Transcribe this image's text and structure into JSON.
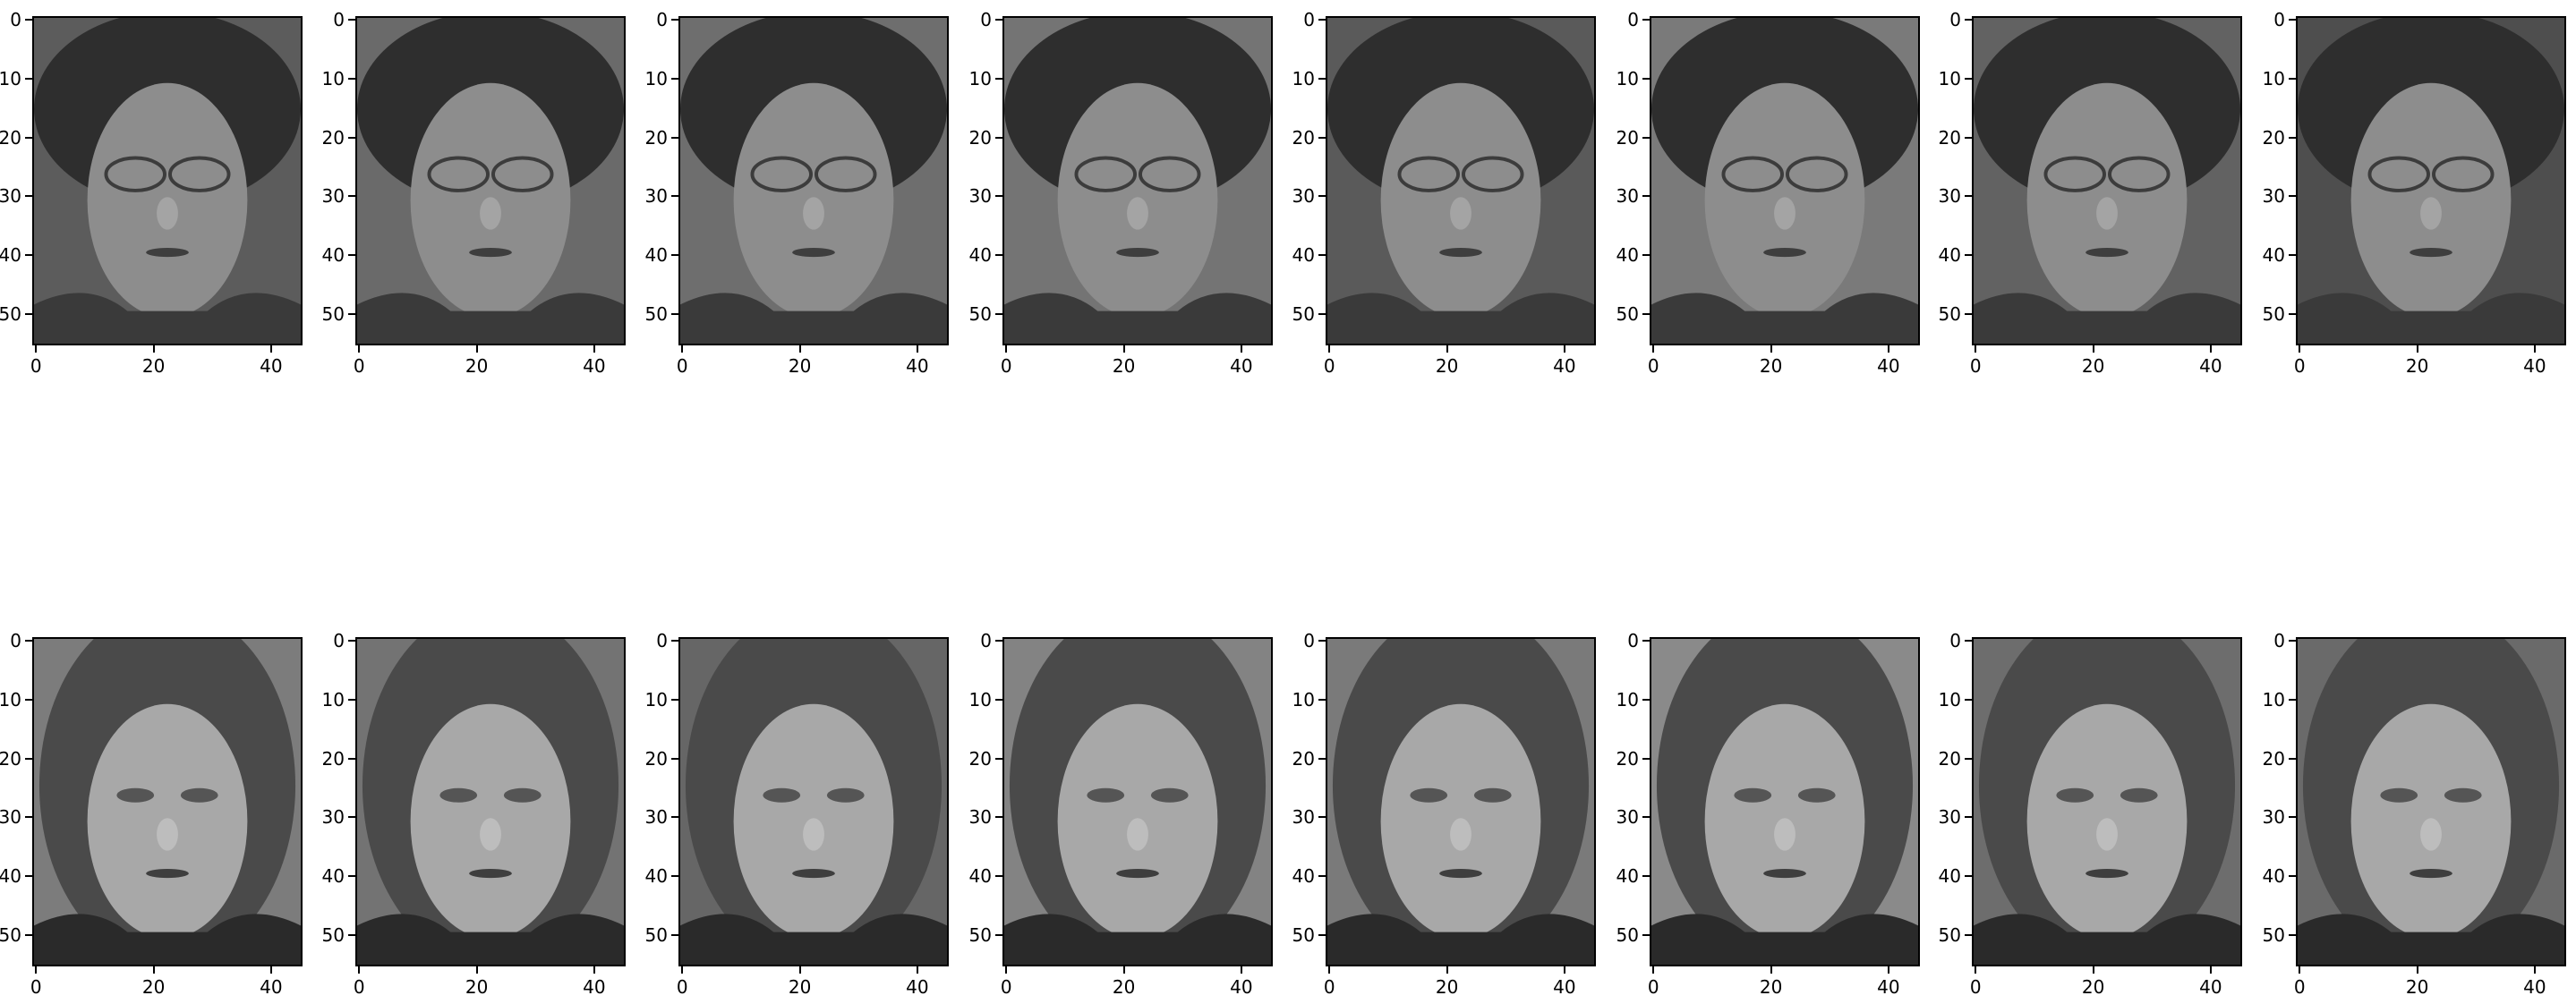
{
  "figure": {
    "rows": 2,
    "cols": 8,
    "image_rows": 56,
    "image_cols": 46,
    "y_ticks": [
      "0",
      "10",
      "20",
      "30",
      "40",
      "50"
    ],
    "x_ticks": [
      "0",
      "20",
      "40"
    ],
    "y_tick_values": [
      0,
      10,
      20,
      30,
      40,
      50
    ],
    "x_tick_values": [
      0,
      20,
      40
    ],
    "panels": [
      {
        "subject": "woman-with-glasses",
        "shade": "#5c5c5c"
      },
      {
        "subject": "woman-with-glasses",
        "shade": "#6a6a6a"
      },
      {
        "subject": "woman-with-glasses",
        "shade": "#6e6e6e"
      },
      {
        "subject": "woman-with-glasses",
        "shade": "#747474"
      },
      {
        "subject": "woman-with-glasses",
        "shade": "#5a5a5a"
      },
      {
        "subject": "woman-with-glasses",
        "shade": "#7a7a7a"
      },
      {
        "subject": "woman-with-glasses",
        "shade": "#626262"
      },
      {
        "subject": "woman-with-glasses",
        "shade": "#4e4e4e"
      },
      {
        "subject": "woman-long-hair",
        "shade": "#7c7c7c"
      },
      {
        "subject": "woman-long-hair",
        "shade": "#737373"
      },
      {
        "subject": "woman-long-hair",
        "shade": "#666666"
      },
      {
        "subject": "woman-long-hair",
        "shade": "#838383"
      },
      {
        "subject": "woman-long-hair",
        "shade": "#7a7a7a"
      },
      {
        "subject": "woman-long-hair",
        "shade": "#8a8a8a"
      },
      {
        "subject": "woman-long-hair",
        "shade": "#6d6d6d"
      },
      {
        "subject": "woman-long-hair",
        "shade": "#6a6a6a"
      }
    ]
  }
}
